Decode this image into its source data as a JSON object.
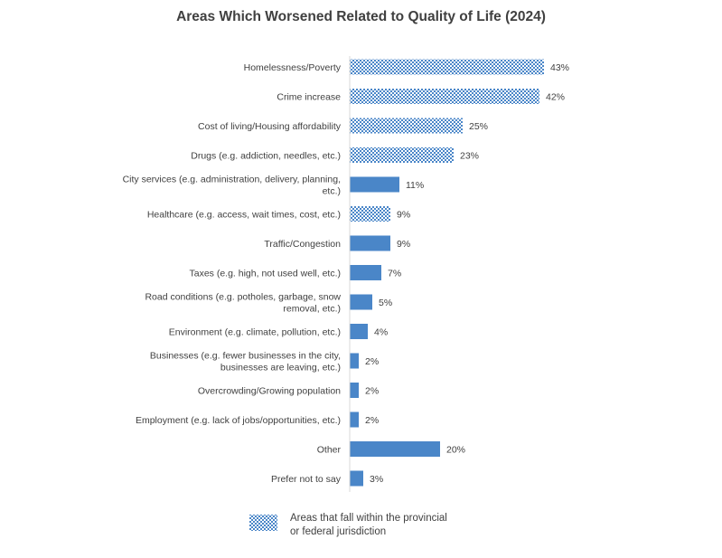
{
  "chart_data": {
    "type": "bar",
    "orientation": "horizontal",
    "title": "Areas Which Worsened Related to Quality of Life (2024)",
    "xlabel": "",
    "ylabel": "",
    "xlim": [
      0,
      50
    ],
    "grid": false,
    "value_suffix": "%",
    "legend_position": "bottom",
    "colors": {
      "bar": "#4A86C8",
      "pattern_light": "#ffffff",
      "axis": "#d9d9d9",
      "text": "#404040"
    },
    "categories": [
      [
        "Homelessness/Poverty"
      ],
      [
        "Crime increase"
      ],
      [
        "Cost of living/Housing affordability"
      ],
      [
        "Drugs (e.g. addiction, needles, etc.)"
      ],
      [
        "City services (e.g. administration, delivery, planning,",
        "etc.)"
      ],
      [
        "Healthcare (e.g. access, wait times, cost, etc.)"
      ],
      [
        "Traffic/Congestion"
      ],
      [
        "Taxes (e.g. high, not used well, etc.)"
      ],
      [
        "Road conditions (e.g. potholes, garbage, snow",
        "removal, etc.)"
      ],
      [
        "Environment (e.g. climate, pollution, etc.)"
      ],
      [
        "Businesses (e.g. fewer businesses in the city,",
        "businesses are leaving, etc.)"
      ],
      [
        "Overcrowding/Growing population"
      ],
      [
        "Employment (e.g. lack of jobs/opportunities, etc.)"
      ],
      [
        "Other"
      ],
      [
        "Prefer not to say"
      ]
    ],
    "values": [
      43,
      42,
      25,
      23,
      11,
      9,
      9,
      7,
      5,
      4,
      2,
      2,
      2,
      20,
      3
    ],
    "provincial_federal": [
      true,
      true,
      true,
      true,
      false,
      true,
      false,
      false,
      false,
      false,
      false,
      false,
      false,
      false,
      false
    ],
    "legend": [
      {
        "pattern": "checkered",
        "lines": [
          "Areas that fall within the provincial",
          "or federal jurisdiction"
        ]
      }
    ]
  }
}
